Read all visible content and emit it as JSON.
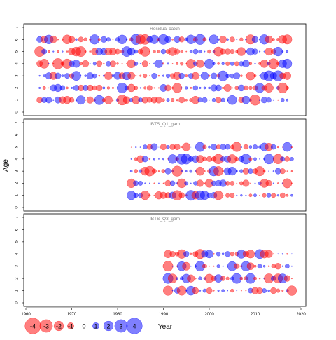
{
  "chart_data": {
    "type": "scatter",
    "encoding": "bubble",
    "xlabel": "Year",
    "ylabel": "Age",
    "xlim": [
      1960,
      2020
    ],
    "x_ticks": [
      1960,
      1970,
      1980,
      1990,
      2000,
      2010,
      2020
    ],
    "colors": {
      "positive": "#0000ff",
      "negative": "#ff0000"
    },
    "panels": [
      {
        "title": "Residual catch",
        "ylim": [
          0,
          7
        ],
        "y_ticks": [
          0,
          1,
          2,
          3,
          4,
          5,
          6,
          7
        ],
        "years": [
          1963,
          2017
        ],
        "ages": [
          1,
          2,
          3,
          4,
          5,
          6
        ]
      },
      {
        "title": "IBTS_Q1_gam",
        "ylim": [
          0,
          7
        ],
        "y_ticks": [
          0,
          1,
          2,
          3,
          4,
          5,
          6,
          7
        ],
        "years": [
          1983,
          2018
        ],
        "ages": [
          1,
          2,
          3,
          4,
          5
        ]
      },
      {
        "title": "IBTS_Q3_gam",
        "ylim": [
          0,
          7
        ],
        "y_ticks": [
          0,
          1,
          2,
          3,
          4,
          5,
          6,
          7
        ],
        "years": [
          1991,
          2018
        ],
        "ages": [
          1,
          2,
          3,
          4
        ]
      }
    ],
    "legend": {
      "position": "bottom-left",
      "values": [
        -4,
        -3,
        -2,
        -1,
        0,
        1,
        2,
        3,
        4
      ],
      "labels": [
        "-4",
        "-3",
        "-2",
        "-1",
        "0",
        "1",
        "2",
        "3",
        "4"
      ]
    }
  }
}
